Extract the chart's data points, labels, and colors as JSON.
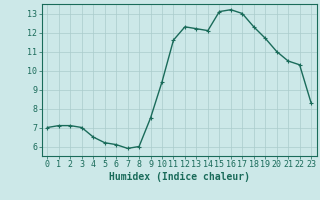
{
  "x": [
    0,
    1,
    2,
    3,
    4,
    5,
    6,
    7,
    8,
    9,
    10,
    11,
    12,
    13,
    14,
    15,
    16,
    17,
    18,
    19,
    20,
    21,
    22,
    23
  ],
  "y": [
    7.0,
    7.1,
    7.1,
    7.0,
    6.5,
    6.2,
    6.1,
    5.9,
    6.0,
    7.5,
    9.4,
    11.6,
    12.3,
    12.2,
    12.1,
    13.1,
    13.2,
    13.0,
    12.3,
    11.7,
    11.0,
    10.5,
    10.3,
    8.3
  ],
  "line_color": "#1a6b5a",
  "marker": "+",
  "marker_size": 3,
  "bg_color": "#cce8e8",
  "grid_color": "#aacccc",
  "xlabel": "Humidex (Indice chaleur)",
  "xlim": [
    -0.5,
    23.5
  ],
  "ylim": [
    5.5,
    13.5
  ],
  "yticks": [
    6,
    7,
    8,
    9,
    10,
    11,
    12,
    13
  ],
  "xticks": [
    0,
    1,
    2,
    3,
    4,
    5,
    6,
    7,
    8,
    9,
    10,
    11,
    12,
    13,
    14,
    15,
    16,
    17,
    18,
    19,
    20,
    21,
    22,
    23
  ],
  "tick_color": "#1a6b5a",
  "xlabel_fontsize": 7,
  "tick_fontsize": 6,
  "linewidth": 1.0,
  "markeredgewidth": 0.8
}
